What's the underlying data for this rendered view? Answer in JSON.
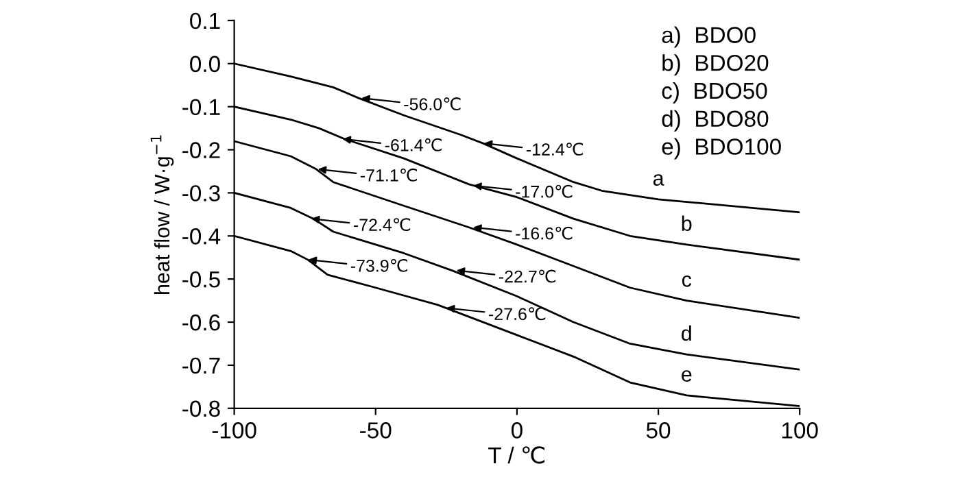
{
  "chart_data": {
    "type": "line",
    "xlabel": "T / ℃",
    "ylabel": "heat flow / W·g$^{−1}$",
    "xlim": [
      -100,
      100
    ],
    "xticks": [
      -100,
      -50,
      0,
      50,
      100
    ],
    "ylim": [
      -0.8,
      0.1
    ],
    "yticks": [
      {
        "value": 0.1,
        "label": "0.1"
      },
      {
        "value": 0.0,
        "label": "0.0"
      },
      {
        "value": -0.1,
        "label": "-0.1"
      },
      {
        "value": -0.2,
        "label": "-0.2"
      },
      {
        "value": -0.3,
        "label": "-0.3"
      },
      {
        "value": -0.4,
        "label": "-0.4"
      },
      {
        "value": -0.5,
        "label": "-0.5"
      },
      {
        "value": -0.6,
        "label": "-0.6"
      },
      {
        "value": -0.7,
        "label": "-0.7"
      },
      {
        "value": -0.8,
        "label": "-0.8"
      }
    ],
    "grid": false,
    "legend": false,
    "marker": "none",
    "line_style": "solid",
    "series": [
      {
        "name": "a",
        "color": "#000000",
        "x": [
          -100,
          -80,
          -65,
          -56,
          -40,
          -20,
          -12,
          0,
          20,
          30,
          50,
          100
        ],
        "values": [
          0.0,
          -0.03,
          -0.055,
          -0.08,
          -0.12,
          -0.165,
          -0.185,
          -0.22,
          -0.275,
          -0.295,
          -0.315,
          -0.345
        ]
      },
      {
        "name": "b",
        "color": "#000000",
        "x": [
          -100,
          -80,
          -70,
          -61,
          -40,
          -17,
          0,
          20,
          40,
          60,
          100
        ],
        "values": [
          -0.1,
          -0.13,
          -0.15,
          -0.175,
          -0.22,
          -0.28,
          -0.31,
          -0.36,
          -0.4,
          -0.42,
          -0.455
        ]
      },
      {
        "name": "c",
        "color": "#000000",
        "x": [
          -100,
          -80,
          -71,
          -65,
          -40,
          -17,
          0,
          20,
          40,
          60,
          100
        ],
        "values": [
          -0.18,
          -0.215,
          -0.245,
          -0.275,
          -0.33,
          -0.38,
          -0.42,
          -0.47,
          -0.52,
          -0.55,
          -0.59
        ]
      },
      {
        "name": "d",
        "color": "#000000",
        "x": [
          -100,
          -80,
          -72,
          -65,
          -40,
          -23,
          0,
          20,
          40,
          60,
          100
        ],
        "values": [
          -0.3,
          -0.335,
          -0.36,
          -0.39,
          -0.44,
          -0.48,
          -0.54,
          -0.6,
          -0.65,
          -0.675,
          -0.71
        ]
      },
      {
        "name": "e",
        "color": "#000000",
        "x": [
          -100,
          -80,
          -74,
          -67,
          -50,
          -28,
          0,
          20,
          40,
          60,
          100
        ],
        "values": [
          -0.4,
          -0.435,
          -0.455,
          -0.49,
          -0.52,
          -0.56,
          -0.63,
          -0.68,
          -0.74,
          -0.77,
          -0.795
        ]
      }
    ],
    "annotations": [
      {
        "text": "-56.0℃",
        "x": -55,
        "y": -0.08
      },
      {
        "text": "-12.4℃",
        "x": -11.7,
        "y": -0.185
      },
      {
        "text": "-61.4℃",
        "x": -61.7,
        "y": -0.175
      },
      {
        "text": "-17.0℃",
        "x": -15.5,
        "y": -0.283
      },
      {
        "text": "-71.1℃",
        "x": -70.4,
        "y": -0.245
      },
      {
        "text": "-16.6℃",
        "x": -15.5,
        "y": -0.38
      },
      {
        "text": "-72.4℃",
        "x": -72.8,
        "y": -0.36
      },
      {
        "text": "-22.7℃",
        "x": -21.4,
        "y": -0.48
      },
      {
        "text": "-73.9℃",
        "x": -73.8,
        "y": -0.455
      },
      {
        "text": "-27.6℃",
        "x": -25,
        "y": -0.567
      },
      "a)  BDO0",
      "b)  BDO20",
      "c)  BDO50",
      "d)  BDO80",
      "e)  BDO100"
    ]
  }
}
